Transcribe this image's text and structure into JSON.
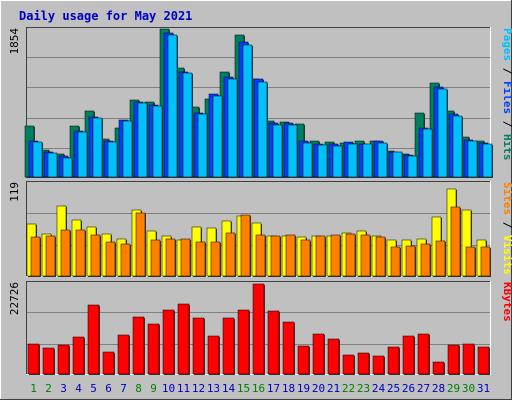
{
  "chart_data": {
    "type": "bar",
    "title": "Daily usage for May 2021",
    "categories": [
      "1",
      "2",
      "3",
      "4",
      "5",
      "6",
      "7",
      "8",
      "9",
      "10",
      "11",
      "12",
      "13",
      "14",
      "15",
      "16",
      "17",
      "18",
      "19",
      "20",
      "21",
      "22",
      "23",
      "24",
      "25",
      "26",
      "27",
      "28",
      "29",
      "30",
      "31"
    ],
    "weekend_days": [
      "1",
      "2",
      "8",
      "9",
      "15",
      "16",
      "22",
      "23",
      "29",
      "30"
    ],
    "panels": [
      {
        "id": "hits-files-pages",
        "ymax": 1854,
        "ymax_label": "1854",
        "axis_label_parts": [
          {
            "text": "Pages",
            "color": "#00c0ff"
          },
          {
            "text": " / ",
            "color": "#000000"
          },
          {
            "text": "Files",
            "color": "#0040ff"
          },
          {
            "text": " / ",
            "color": "#000000"
          },
          {
            "text": "Hits",
            "color": "#008060"
          }
        ],
        "series": [
          {
            "name": "Hits",
            "color": "#008060",
            "values": [
              640,
              340,
              290,
              640,
              830,
              480,
              620,
              970,
              940,
              1870,
              1380,
              880,
              980,
              1330,
              1790,
              1240,
              700,
              690,
              670,
              460,
              440,
              430,
              450,
              450,
              330,
              290,
              810,
              1190,
              830,
              510,
              450
            ]
          },
          {
            "name": "Files",
            "color": "#0040ff",
            "values": [
              460,
              320,
              260,
              580,
              760,
              450,
              720,
              950,
              910,
              1820,
              1330,
              810,
              1050,
              1260,
              1700,
              1230,
              680,
              680,
              450,
              420,
              410,
              440,
              420,
              450,
              320,
              280,
              620,
              1140,
              790,
              470,
              430
            ]
          },
          {
            "name": "Pages",
            "color": "#00c0ff",
            "values": [
              440,
              300,
              240,
              570,
              740,
              440,
              700,
              930,
              890,
              1790,
              1310,
              800,
              1020,
              1230,
              1670,
              1200,
              660,
              660,
              430,
              400,
              390,
              420,
              410,
              430,
              310,
              270,
              600,
              1110,
              770,
              450,
              410
            ]
          }
        ]
      },
      {
        "id": "visits-sites",
        "ymax": 119,
        "ymax_label": "119",
        "axis_label_parts": [
          {
            "text": "Sites",
            "color": "#ff8000"
          },
          {
            "text": " / ",
            "color": "#000000"
          },
          {
            "text": "Visits",
            "color": "#ffff00"
          }
        ],
        "series": [
          {
            "name": "Visits",
            "color": "#ffff00",
            "values": [
              67,
              54,
              91,
              72,
              64,
              54,
              48,
              85,
              58,
              52,
              47,
              64,
              62,
              71,
              78,
              68,
              52,
              52,
              50,
              52,
              52,
              56,
              58,
              52,
              46,
              46,
              48,
              76,
              112,
              85,
              46
            ]
          },
          {
            "name": "Sites",
            "color": "#ff8000",
            "values": [
              50,
              52,
              59,
              59,
              53,
              44,
              42,
              81,
              47,
              48,
              48,
              44,
              44,
              56,
              79,
              53,
              52,
              53,
              47,
              52,
              53,
              54,
              53,
              50,
              37,
              39,
              42,
              45,
              89,
              37,
              37
            ]
          }
        ]
      },
      {
        "id": "kbytes",
        "ymax": 22726,
        "ymax_label": "22726",
        "axis_label_parts": [
          {
            "text": "KBytes",
            "color": "#ff0000"
          }
        ],
        "series": [
          {
            "name": "KBytes",
            "color": "#ff0000",
            "values": [
              7600,
              6500,
              7400,
              9300,
              17400,
              5600,
              9800,
              14400,
              12700,
              16200,
              17800,
              14200,
              9500,
              14200,
              16200,
              22700,
              16000,
              13100,
              7000,
              10100,
              8800,
              4800,
              5400,
              4600,
              6800,
              9700,
              10000,
              3000,
              7400,
              7700,
              6900
            ]
          }
        ]
      }
    ],
    "grid": true
  },
  "colors": {
    "plot_background": "#c0c0c0",
    "frame_background": "#c0c0c0",
    "gridline": "#808080",
    "title": "#0000c0",
    "weekday_label": "#0000c0",
    "weekend_label": "#008000",
    "shadow": "#404040"
  }
}
